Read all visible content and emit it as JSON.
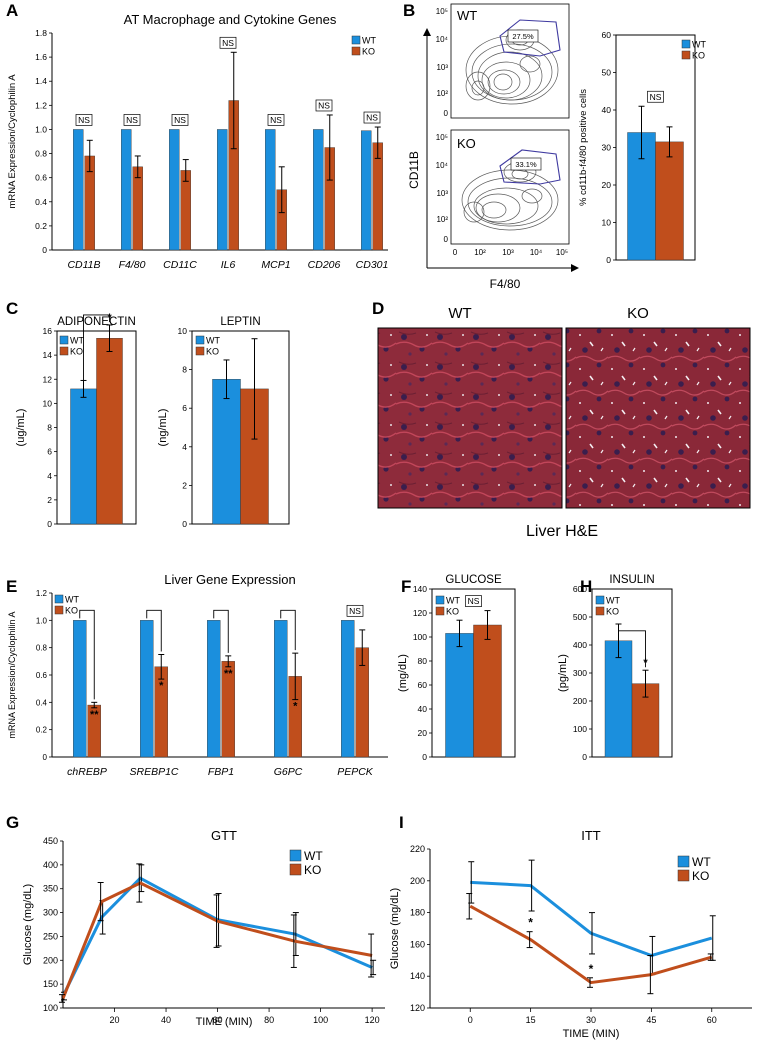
{
  "colors": {
    "wt": "#1b8fdd",
    "ko": "#c04e1c",
    "axis": "#000000",
    "contour": "#555555",
    "gate": "#3f3aa0",
    "tissue": "#8b2a3a"
  },
  "panels": {
    "A": {
      "letter": "A",
      "title": "AT Macrophage and Cytokine Genes",
      "ylabel": "mRNA Expression/Cyclophilin A"
    },
    "B": {
      "letter": "B",
      "wt_label": "WT",
      "ko_label": "KO",
      "wt_gate": "27.5%",
      "ko_gate": "33.1%",
      "xlabel": "F4/80",
      "ylabel": "CD11B",
      "ticks": [
        "0",
        "10²",
        "10³",
        "10⁴",
        "10⁵"
      ],
      "xticks": [
        "0",
        "10²",
        "10³",
        "10⁴",
        "10⁵"
      ]
    },
    "C": {
      "letter": "C"
    },
    "D": {
      "letter": "D",
      "wt_label": "WT",
      "ko_label": "KO",
      "caption": "Liver H&E"
    },
    "E": {
      "letter": "E",
      "title": "Liver Gene Expression",
      "ylabel": "mRNA Expression/Cyclophilin A"
    },
    "F": {
      "letter": "F"
    },
    "G": {
      "letter": "G"
    },
    "H": {
      "letter": "H"
    },
    "I": {
      "letter": "I"
    }
  },
  "chart_data": [
    {
      "id": "A",
      "type": "bar",
      "title": "AT Macrophage and Cytokine Genes",
      "ylabel": "mRNA Expression/Cyclophilin A",
      "xlabel": "",
      "categories": [
        "CD11B",
        "F4/80",
        "CD11C",
        "IL6",
        "MCP1",
        "CD206",
        "CD301"
      ],
      "series": [
        {
          "name": "WT",
          "values": [
            1.0,
            1.0,
            1.0,
            1.0,
            1.0,
            1.0,
            0.99
          ],
          "errors": [
            0,
            0,
            0,
            0,
            0,
            0,
            0
          ]
        },
        {
          "name": "KO",
          "values": [
            0.78,
            0.69,
            0.66,
            1.24,
            0.5,
            0.85,
            0.89
          ],
          "errors": [
            0.13,
            0.09,
            0.09,
            0.4,
            0.19,
            0.27,
            0.13
          ]
        }
      ],
      "ylim": [
        0,
        1.8
      ],
      "yticks": [
        "0",
        "0.2",
        "0.4",
        "0.6",
        "0.8",
        "1.0",
        "1.2",
        "1.4",
        "1.6",
        "1.8"
      ],
      "annotations": [
        "NS",
        "NS",
        "NS",
        "NS",
        "NS",
        "NS",
        "NS"
      ],
      "legend": [
        "WT",
        "KO"
      ]
    },
    {
      "id": "B",
      "type": "bar",
      "ylabel": "% cd11b-f4/80 positive cells",
      "categories": [
        ""
      ],
      "series": [
        {
          "name": "WT",
          "values": [
            34
          ],
          "errors": [
            7
          ]
        },
        {
          "name": "KO",
          "values": [
            31.5
          ],
          "errors": [
            4
          ]
        }
      ],
      "ylim": [
        0,
        60
      ],
      "yticks": [
        "0",
        "10",
        "20",
        "30",
        "40",
        "50",
        "60"
      ],
      "annotations": [
        "NS"
      ],
      "legend": [
        "WT",
        "KO"
      ]
    },
    {
      "id": "C1",
      "type": "bar",
      "title": "ADIPONECTIN",
      "ylabel": "(ug/mL)",
      "categories": [
        ""
      ],
      "series": [
        {
          "name": "WT",
          "values": [
            11.2
          ],
          "errors": [
            0.7
          ]
        },
        {
          "name": "KO",
          "values": [
            15.4
          ],
          "errors": [
            1.1
          ]
        }
      ],
      "ylim": [
        0,
        16
      ],
      "yticks": [
        "0",
        "2",
        "4",
        "6",
        "8",
        "10",
        "12",
        "14",
        "16"
      ],
      "annotations": [
        "*"
      ],
      "legend": [
        "WT",
        "KO"
      ]
    },
    {
      "id": "C2",
      "type": "bar",
      "title": "LEPTIN",
      "ylabel": "(ng/mL)",
      "categories": [
        ""
      ],
      "series": [
        {
          "name": "WT",
          "values": [
            7.5
          ],
          "errors": [
            1.0
          ]
        },
        {
          "name": "KO",
          "values": [
            7.0
          ],
          "errors": [
            2.6
          ]
        }
      ],
      "ylim": [
        0,
        10
      ],
      "yticks": [
        "0",
        "2",
        "4",
        "6",
        "8",
        "10"
      ],
      "annotations": [],
      "legend": [
        "WT",
        "KO"
      ]
    },
    {
      "id": "E",
      "type": "bar",
      "title": "Liver Gene Expression",
      "ylabel": "mRNA Expression/Cyclophilin A",
      "categories": [
        "chREBP",
        "SREBP1C",
        "FBP1",
        "G6PC",
        "PEPCK"
      ],
      "series": [
        {
          "name": "WT",
          "values": [
            1.0,
            1.0,
            1.0,
            1.0,
            1.0
          ],
          "errors": [
            0,
            0,
            0,
            0,
            0
          ]
        },
        {
          "name": "KO",
          "values": [
            0.38,
            0.66,
            0.7,
            0.59,
            0.8
          ],
          "errors": [
            0.02,
            0.09,
            0.04,
            0.17,
            0.13
          ]
        }
      ],
      "ylim": [
        0,
        1.2
      ],
      "yticks": [
        "0",
        "0.2",
        "0.4",
        "0.6",
        "0.8",
        "1.0",
        "1.2"
      ],
      "annotations": [
        "**",
        "*",
        "**",
        "*",
        "NS"
      ],
      "legend": [
        "WT",
        "KO"
      ]
    },
    {
      "id": "F",
      "type": "bar",
      "title": "GLUCOSE",
      "ylabel": "(mg/dL)",
      "categories": [
        ""
      ],
      "series": [
        {
          "name": "WT",
          "values": [
            103
          ],
          "errors": [
            11
          ]
        },
        {
          "name": "KO",
          "values": [
            110
          ],
          "errors": [
            12
          ]
        }
      ],
      "ylim": [
        0,
        140
      ],
      "yticks": [
        "0",
        "20",
        "40",
        "60",
        "80",
        "100",
        "120",
        "140"
      ],
      "annotations": [
        "NS"
      ],
      "legend": [
        "WT",
        "KO"
      ]
    },
    {
      "id": "H",
      "type": "bar",
      "title": "INSULIN",
      "ylabel": "(pg/mL)",
      "categories": [
        ""
      ],
      "series": [
        {
          "name": "WT",
          "values": [
            415
          ],
          "errors": [
            60
          ]
        },
        {
          "name": "KO",
          "values": [
            262
          ],
          "errors": [
            48
          ]
        }
      ],
      "ylim": [
        0,
        600
      ],
      "yticks": [
        "0",
        "100",
        "200",
        "300",
        "400",
        "500",
        "600"
      ],
      "annotations": [
        "*"
      ],
      "legend": [
        "WT",
        "KO"
      ]
    },
    {
      "id": "G",
      "type": "line",
      "title": "GTT",
      "xlabel": "TIME (MIN)",
      "ylabel": "Glucose (mg/dL)",
      "x": [
        0,
        15,
        30,
        60,
        90,
        120
      ],
      "series": [
        {
          "name": "WT",
          "values": [
            125,
            290,
            372,
            285,
            255,
            185
          ],
          "errors": [
            8,
            35,
            28,
            55,
            45,
            15
          ]
        },
        {
          "name": "KO",
          "values": [
            120,
            323,
            362,
            282,
            240,
            210
          ],
          "errors": [
            8,
            40,
            40,
            55,
            55,
            45
          ]
        }
      ],
      "xlim": [
        0,
        125
      ],
      "ylim": [
        100,
        450
      ],
      "xticks": [
        "20",
        "40",
        "60",
        "80",
        "100",
        "120"
      ],
      "yticks": [
        "100",
        "150",
        "200",
        "250",
        "300",
        "350",
        "400",
        "450"
      ],
      "legend": [
        "WT",
        "KO"
      ]
    },
    {
      "id": "I",
      "type": "line",
      "title": "ITT",
      "xlabel": "TIME (MIN)",
      "ylabel": "Glucose (mg/dL)",
      "x": [
        0,
        15,
        30,
        45,
        60
      ],
      "series": [
        {
          "name": "WT",
          "values": [
            199,
            197,
            167,
            153,
            164
          ],
          "errors": [
            13,
            16,
            13,
            12,
            14
          ]
        },
        {
          "name": "KO",
          "values": [
            184,
            163,
            136,
            141,
            152
          ],
          "errors": [
            8,
            5,
            3,
            12,
            2
          ]
        }
      ],
      "xlim": [
        -10,
        70
      ],
      "ylim": [
        120,
        220
      ],
      "xticks": [
        "0",
        "15",
        "30",
        "45",
        "60"
      ],
      "yticks": [
        "120",
        "140",
        "160",
        "180",
        "200",
        "220"
      ],
      "annotations": [
        "*",
        "*"
      ],
      "legend": [
        "WT",
        "KO"
      ]
    }
  ]
}
